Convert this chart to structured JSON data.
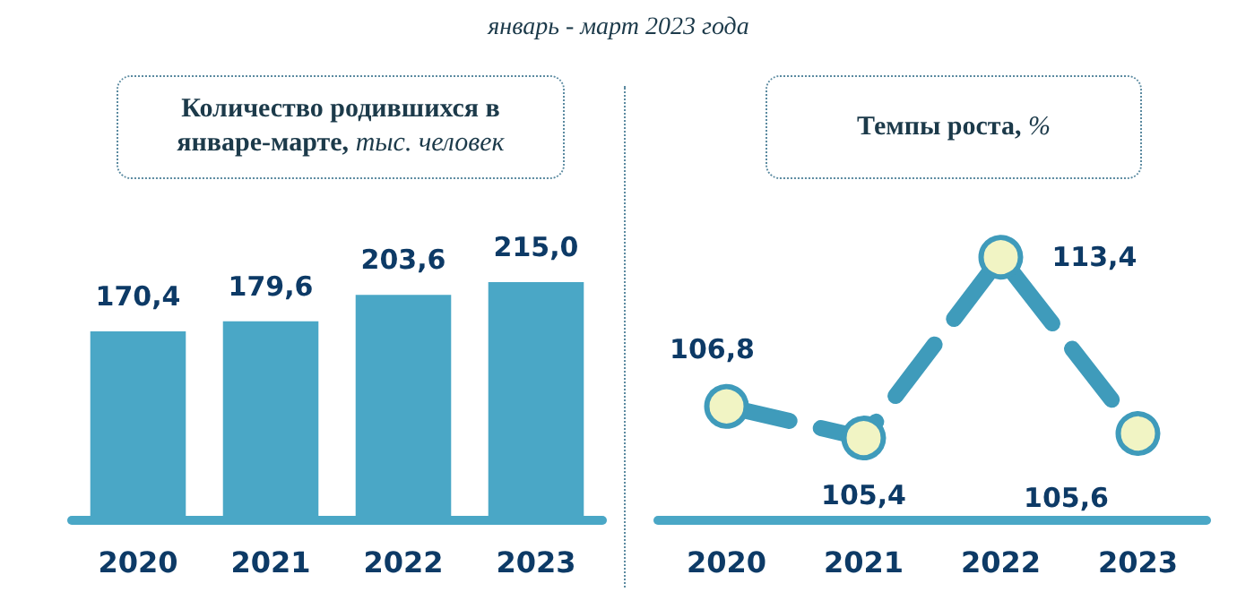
{
  "chart_data": [
    {
      "type": "bar",
      "title": "Количество родившихся в январе-марте,",
      "subtitle": "тыс. человек",
      "annotations": [
        "январь - март 2023 года"
      ],
      "categories": [
        "2020",
        "2021",
        "2022",
        "2023"
      ],
      "values": [
        170.4,
        179.6,
        203.6,
        215.0
      ],
      "value_labels": [
        "170,4",
        "179,6",
        "203,6",
        "215,0"
      ],
      "color": "#4aa7c6"
    },
    {
      "type": "line",
      "title": "Темпы роста,",
      "subtitle": "%",
      "categories": [
        "2020",
        "2021",
        "2022",
        "2023"
      ],
      "values": [
        106.8,
        105.4,
        113.4,
        105.6
      ],
      "value_labels": [
        "106,8",
        "105,4",
        "113,4",
        "105,6"
      ],
      "color": "#3f9bbb",
      "marker": "circle",
      "line_style": "dashed"
    }
  ]
}
